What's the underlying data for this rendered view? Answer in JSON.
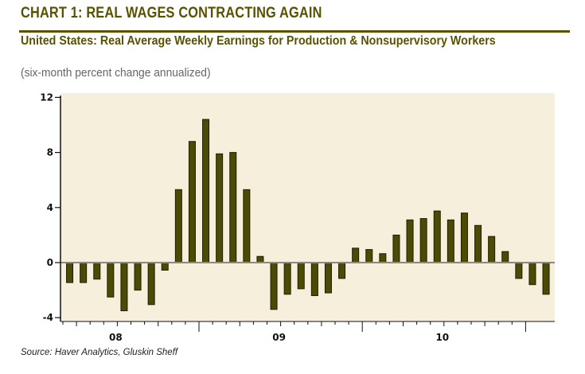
{
  "header": {
    "title": "CHART 1: REAL WAGES CONTRACTING AGAIN",
    "subtitle": "United States: Real Average Weekly Earnings for Production & Nonsupervisory Workers",
    "units": "(six-month percent change annualized)"
  },
  "footer": {
    "source": "Source: Haver Analytics, Gluskin Sheff"
  },
  "colors": {
    "title": "#5a5200",
    "bar_fill": "#4b4b05",
    "bar_stroke": "#1e1e00",
    "plot_background": "#f5efdc",
    "zero_line": "#8a8a80"
  },
  "chart_data": {
    "type": "bar",
    "title": "United States: Real Average Weekly Earnings for Production & Nonsupervisory Workers",
    "subtitle": "(six-month percent change annualized)",
    "xlabel": "",
    "ylabel": "",
    "ylim": [
      -4,
      12
    ],
    "yticks": [
      -4,
      0,
      4,
      8,
      12
    ],
    "xlim_months": [
      "2008-01",
      "2010-12"
    ],
    "year_labels": [
      {
        "label": "08",
        "year": 2008
      },
      {
        "label": "09",
        "year": 2009
      },
      {
        "label": "10",
        "year": 2010
      }
    ],
    "grid": false,
    "legend": "none",
    "categories": [
      "2008-03",
      "2008-04",
      "2008-05",
      "2008-06",
      "2008-07",
      "2008-08",
      "2008-09",
      "2008-10",
      "2008-11",
      "2008-12",
      "2009-01",
      "2009-02",
      "2009-03",
      "2009-04",
      "2009-05",
      "2009-06",
      "2009-07",
      "2009-08",
      "2009-09",
      "2009-10",
      "2009-11",
      "2009-12",
      "2010-01",
      "2010-02",
      "2010-03",
      "2010-04",
      "2010-05",
      "2010-06",
      "2010-07",
      "2010-08",
      "2010-09",
      "2010-10",
      "2010-11",
      "2010-12",
      "2011-01",
      "2011-02"
    ],
    "values": [
      -1.45,
      -1.45,
      -1.2,
      -2.5,
      -3.5,
      -2.0,
      -3.05,
      -0.55,
      5.3,
      8.8,
      10.4,
      7.9,
      8.0,
      5.3,
      0.45,
      -3.4,
      -2.3,
      -1.9,
      -2.4,
      -2.2,
      -1.15,
      1.05,
      0.95,
      0.65,
      2.0,
      3.1,
      3.2,
      3.75,
      3.1,
      3.6,
      2.7,
      1.9,
      0.8,
      -1.15,
      -1.6,
      -2.3
    ]
  }
}
